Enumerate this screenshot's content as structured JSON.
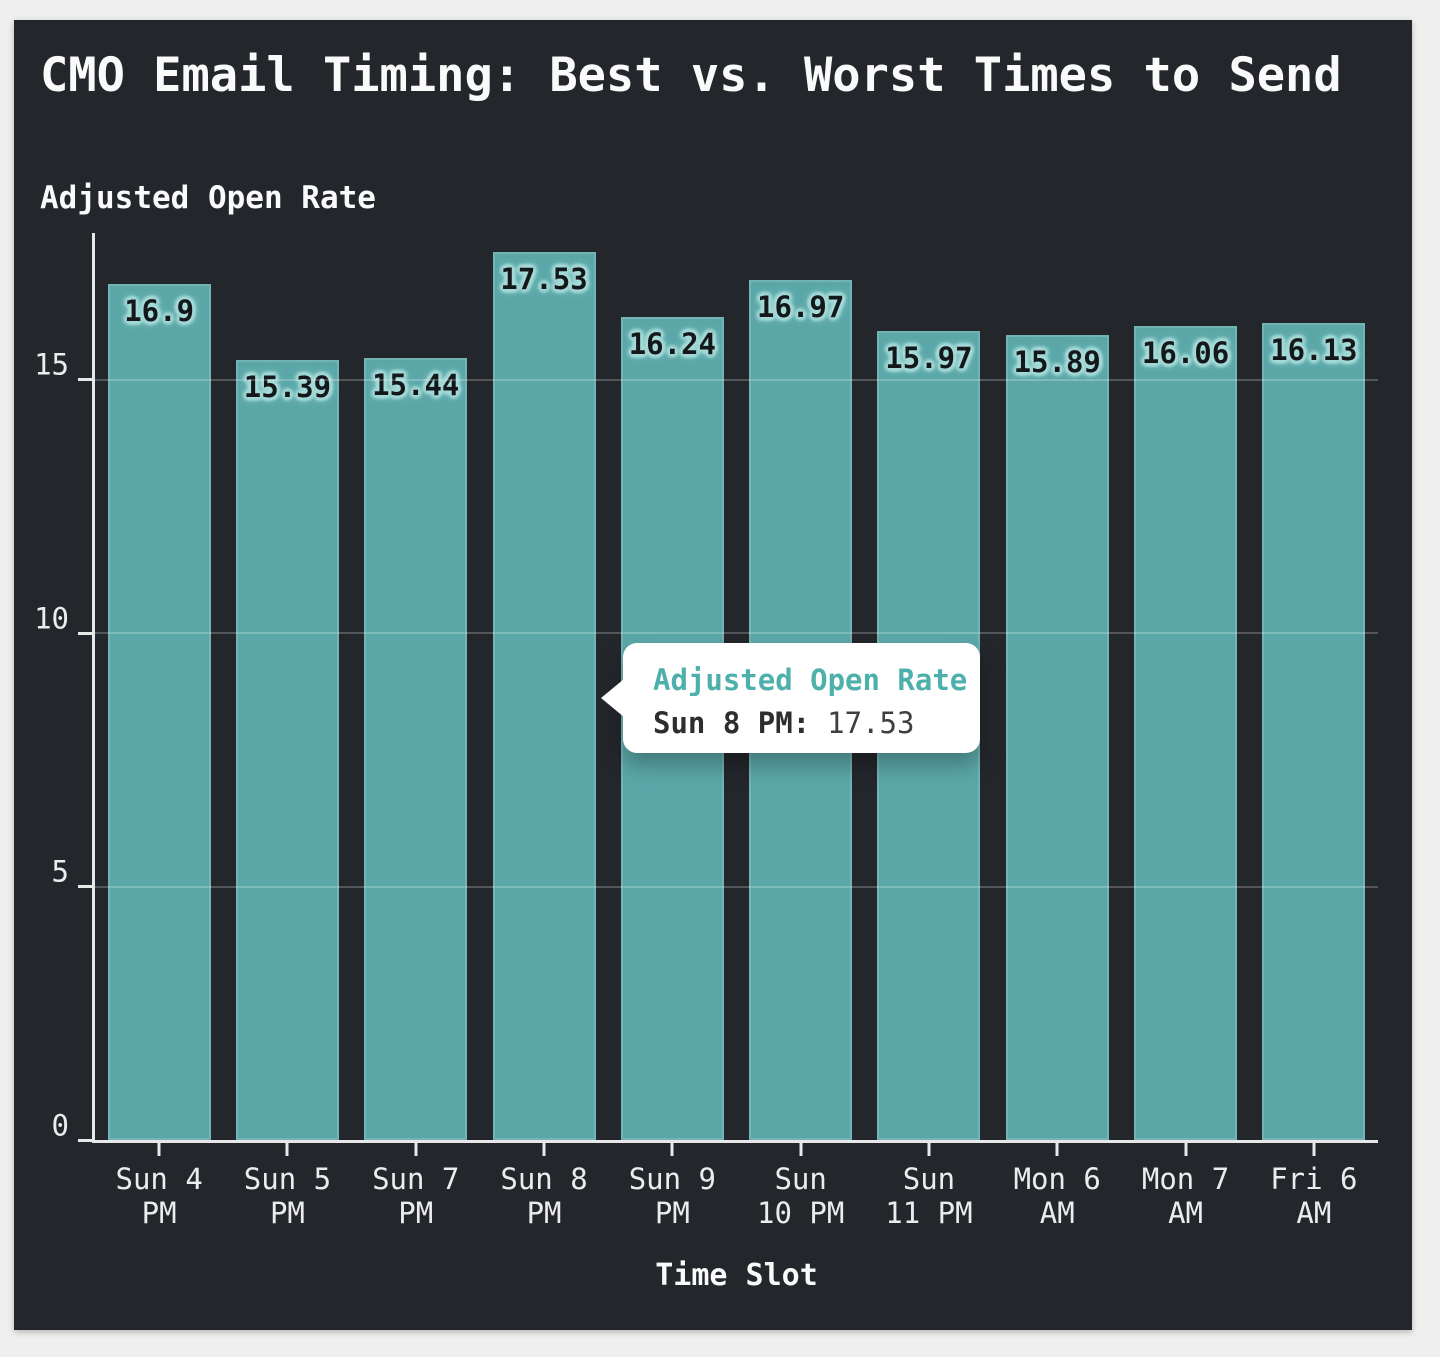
{
  "chart_data": {
    "type": "bar",
    "title": "CMO Email Timing: Best vs. Worst Times to Send",
    "ylabel": "Adjusted Open Rate",
    "xlabel": "Time Slot",
    "series_name": "Adjusted Open Rate",
    "categories": [
      "Sun 4 PM",
      "Sun 5 PM",
      "Sun 7 PM",
      "Sun 8 PM",
      "Sun 9 PM",
      "Sun 10 PM",
      "Sun 11 PM",
      "Mon 6 AM",
      "Mon 7 AM",
      "Fri 6 AM"
    ],
    "category_lines": [
      [
        "Sun 4",
        "PM"
      ],
      [
        "Sun 5",
        "PM"
      ],
      [
        "Sun 7",
        "PM"
      ],
      [
        "Sun 8",
        "PM"
      ],
      [
        "Sun 9",
        "PM"
      ],
      [
        "Sun",
        "10 PM"
      ],
      [
        "Sun",
        "11 PM"
      ],
      [
        "Mon 6",
        "AM"
      ],
      [
        "Mon 7",
        "AM"
      ],
      [
        "Fri 6",
        "AM"
      ]
    ],
    "values": [
      16.9,
      15.39,
      15.44,
      17.53,
      16.24,
      16.97,
      15.97,
      15.89,
      16.06,
      16.13
    ],
    "value_labels": [
      "16.9",
      "15.39",
      "15.44",
      "17.53",
      "16.24",
      "16.97",
      "15.97",
      "15.89",
      "16.06",
      "16.13"
    ],
    "yticks": [
      0,
      5,
      10,
      15
    ],
    "ylim": [
      0,
      17.9
    ],
    "grid": true,
    "legend_position": "none"
  },
  "tooltip": {
    "header": "Adjusted Open Rate",
    "label": "Sun 8 PM:",
    "value": "17.53"
  },
  "colors": {
    "page_bg": "#efefef",
    "panel_bg": "#23262b",
    "title_text": "#fafafa",
    "axis_text": "#ececec",
    "axis_line": "#e8e8e8",
    "gridline": "rgba(255,255,255,0.22)",
    "bar_fill": "#5ba7a8",
    "bar_edge": "rgba(255,255,255,0.14)",
    "value_label_text": "#15181a",
    "value_label_halo": "#a5dad8",
    "tooltip_header": "#4db0ab",
    "tooltip_label": "#2e2e2e",
    "tooltip_value": "#3f3f3f"
  }
}
